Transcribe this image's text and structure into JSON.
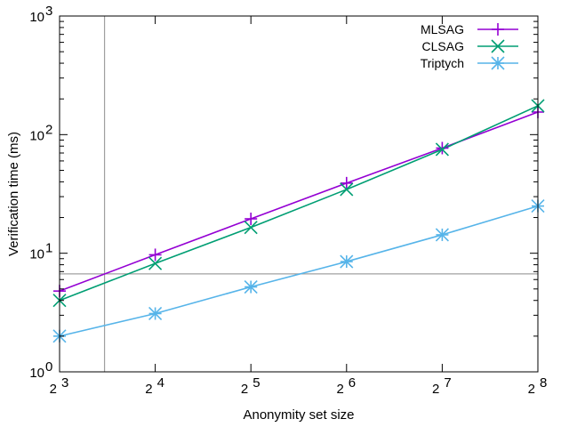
{
  "chart_data": {
    "type": "line",
    "title": "",
    "xlabel": "Anonymity set size",
    "ylabel": "Verification time (ms)",
    "x": [
      3,
      4,
      5,
      6,
      7,
      8
    ],
    "x_tick_labels": [
      {
        "base": "2",
        "exp": "3"
      },
      {
        "base": "2",
        "exp": "4"
      },
      {
        "base": "2",
        "exp": "5"
      },
      {
        "base": "2",
        "exp": "6"
      },
      {
        "base": "2",
        "exp": "7"
      },
      {
        "base": "2",
        "exp": "8"
      }
    ],
    "y_scale": "log",
    "ylim": [
      1,
      1000
    ],
    "y_tick_labels": [
      {
        "base": "10",
        "exp": "0"
      },
      {
        "base": "10",
        "exp": "1"
      },
      {
        "base": "10",
        "exp": "2"
      },
      {
        "base": "10",
        "exp": "3"
      }
    ],
    "series": [
      {
        "name": "MLSAG",
        "marker": "plus",
        "color": "#9400d3",
        "values": [
          4.8,
          9.7,
          19.5,
          39,
          77,
          155
        ]
      },
      {
        "name": "CLSAG",
        "marker": "x",
        "color": "#009e73",
        "values": [
          4.0,
          8.2,
          16.5,
          34.5,
          75,
          175
        ]
      },
      {
        "name": "Triptych",
        "marker": "star",
        "color": "#56b4e9",
        "values": [
          2.0,
          3.1,
          5.2,
          8.5,
          14.3,
          25
        ]
      }
    ],
    "legend_position": "top-right",
    "grid": false
  }
}
